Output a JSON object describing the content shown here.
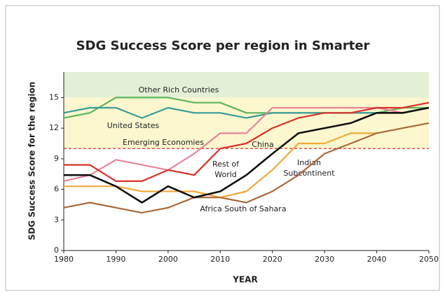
{
  "chart_data": {
    "type": "line",
    "title": "SDG Success Score per region in Smarter",
    "x_label": "YEAR",
    "y_label": "SDG Success Score  for the region",
    "x": [
      1980,
      1985,
      1990,
      1995,
      2000,
      2005,
      2010,
      2015,
      2020,
      2025,
      2030,
      2035,
      2040,
      2045,
      2050
    ],
    "xlim": [
      1980,
      2050
    ],
    "xticks": [
      1980,
      1990,
      2000,
      2010,
      2020,
      2030,
      2040,
      2050
    ],
    "ylim": [
      0,
      17.5
    ],
    "yticks": [
      0,
      3,
      6,
      9,
      12,
      15
    ],
    "bands": [
      {
        "from": 15,
        "to": 17.5,
        "color": "#e4f0d6"
      },
      {
        "from": 10,
        "to": 15,
        "color": "#fdf7cf"
      }
    ],
    "threshold": {
      "value": 10,
      "color": "#d9302a"
    },
    "series": [
      {
        "label": [
          "Other Rich Countries"
        ],
        "color": "#5cb55c",
        "values": [
          13,
          13.5,
          15,
          15,
          15,
          14.5,
          14.5,
          13.5,
          13.5,
          13.5,
          13.5,
          13.5,
          13.5,
          14,
          14
        ]
      },
      {
        "label": [
          "United States"
        ],
        "color": "#3a9a9a",
        "values": [
          13.5,
          14,
          14,
          13,
          14,
          13.5,
          13.5,
          13,
          13.5,
          13.5,
          13.5,
          13.5,
          13.5,
          13.5,
          14
        ]
      },
      {
        "label": [
          "Emerging Economies"
        ],
        "color": "#e9849a",
        "values": [
          6.8,
          7.4,
          8.9,
          8.4,
          7.9,
          9.5,
          11.5,
          11.5,
          14,
          14,
          14,
          14,
          14,
          13.5,
          14
        ]
      },
      {
        "label": [
          "China"
        ],
        "color": "#d9302a",
        "values": [
          8.4,
          8.4,
          6.8,
          6.8,
          7.9,
          7.4,
          10,
          10.5,
          12,
          13,
          13.5,
          13.5,
          14,
          14,
          14.5
        ]
      },
      {
        "label": [
          "Indian",
          "Subcontinent"
        ],
        "color": "#f2a93b",
        "values": [
          6.3,
          6.3,
          6.3,
          5.8,
          5.8,
          5.8,
          5.2,
          5.8,
          7.9,
          10.5,
          10.5,
          11.5,
          11.5,
          null,
          null
        ]
      },
      {
        "label": [
          "Africa South of Sahara"
        ],
        "color": "#a9683a",
        "values": [
          4.2,
          4.7,
          4.2,
          3.7,
          4.2,
          5.2,
          5.2,
          4.7,
          5.8,
          7.4,
          9.5,
          10.5,
          11.5,
          12,
          12.5
        ]
      },
      {
        "label": [
          "Rest of",
          "World"
        ],
        "color": "#111111",
        "values": [
          7.4,
          7.4,
          6.3,
          4.7,
          6.3,
          5.2,
          5.8,
          7.4,
          9.5,
          11.5,
          12,
          12.5,
          13.5,
          13.5,
          14
        ]
      }
    ]
  }
}
